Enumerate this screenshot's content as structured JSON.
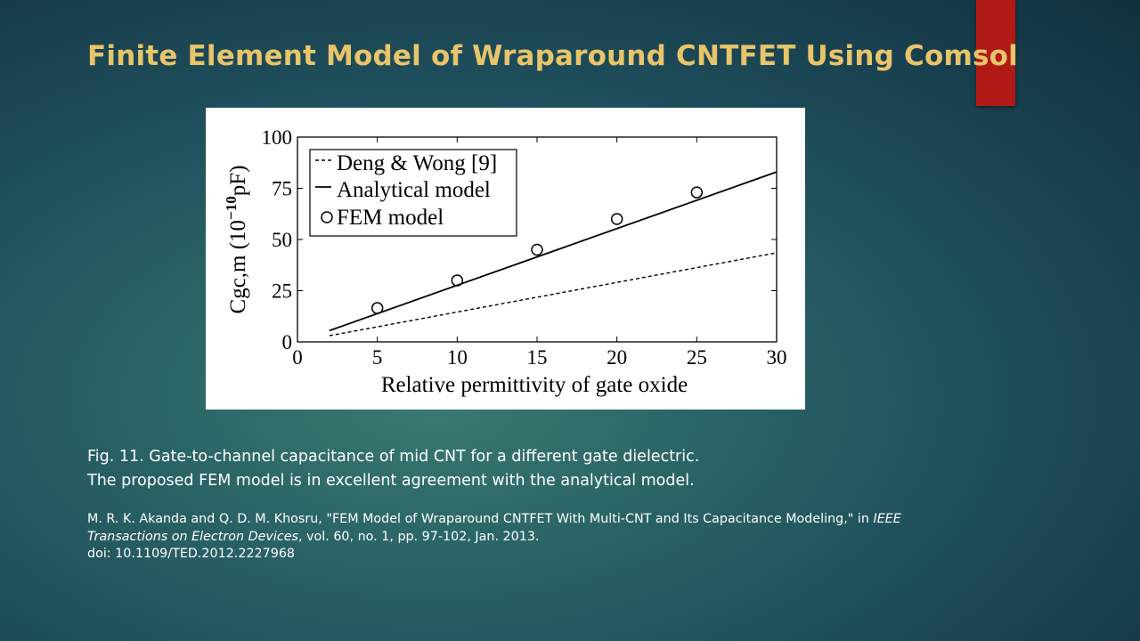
{
  "slide": {
    "title": "Finite Element Model of Wraparound  CNTFET Using Comsol",
    "accent_color": "#b01915",
    "title_color": "#e8c46a"
  },
  "caption": {
    "line1": "Fig. 11. Gate-to-channel capacitance of mid CNT for a different gate dielectric.",
    "line2": "The proposed FEM model is in excellent agreement with the analytical model."
  },
  "citation": {
    "part1": "M. R. K. Akanda and Q. D. M. Khosru, \"FEM Model of Wraparound CNTFET With Multi-CNT and Its Capacitance Modeling,\" in ",
    "journal": "IEEE Transactions on Electron Devices",
    "part2": ", vol. 60, no. 1, pp. 97-102, Jan. 2013.",
    "doi": "doi: 10.1109/TED.2012.2227968"
  },
  "chart_data": {
    "type": "line",
    "xlabel": "Relative permittivity of gate oxide",
    "ylabel_main": "Cgc,m (10",
    "ylabel_exp": "−10",
    "ylabel_unit": "pF)",
    "xlim": [
      0,
      30
    ],
    "ylim": [
      0,
      100
    ],
    "xticks": [
      0,
      5,
      10,
      15,
      20,
      25,
      30
    ],
    "yticks": [
      0,
      25,
      50,
      75,
      100
    ],
    "grid": false,
    "legend_position": "top-left",
    "series": [
      {
        "name": "Deng & Wong [9]",
        "style": "dashed",
        "x": [
          2,
          30
        ],
        "y": [
          3.0,
          43.5
        ]
      },
      {
        "name": "Analytical model",
        "style": "solid",
        "x": [
          2,
          30
        ],
        "y": [
          5.5,
          83.0
        ]
      },
      {
        "name": "FEM model",
        "style": "marker",
        "x": [
          5,
          10,
          15,
          20,
          25
        ],
        "y": [
          16.5,
          30.0,
          45.0,
          60.0,
          73.0
        ]
      }
    ]
  }
}
